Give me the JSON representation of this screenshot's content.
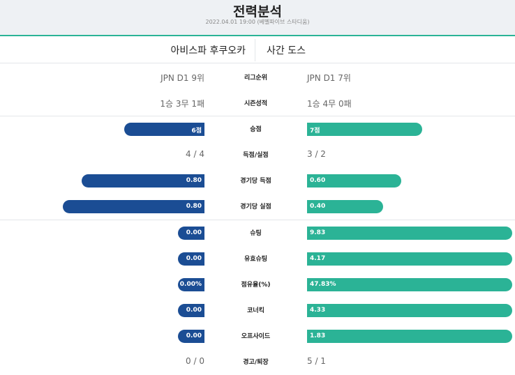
{
  "header": {
    "title": "전력분석",
    "subtitle": "2022.04.01 19:00 (베벨파이브 스타디움)"
  },
  "teams": {
    "home": "아비스파 후쿠오카",
    "away": "사간 도스"
  },
  "colors": {
    "home": "#1b4d94",
    "away": "#2bb396"
  },
  "stats": [
    {
      "label": "리그순위",
      "home": "JPN D1 9위",
      "away": "JPN D1 7위",
      "type": "text"
    },
    {
      "label": "시즌성적",
      "home": "1승 3무 1패",
      "away": "1승 4무 0패",
      "type": "text"
    },
    {
      "label": "승점",
      "home": "6점",
      "away": "7점",
      "type": "bar",
      "home_fill": 0.39,
      "away_fill": 0.56
    },
    {
      "label": "득점/실점",
      "home": "4 / 4",
      "away": "3 / 2",
      "type": "text"
    },
    {
      "label": "경기당 득점",
      "home": "0.80",
      "away": "0.60",
      "type": "bar",
      "home_fill": 0.6,
      "away_fill": 0.46
    },
    {
      "label": "경기당 실점",
      "home": "0.80",
      "away": "0.40",
      "type": "bar",
      "home_fill": 0.69,
      "away_fill": 0.37
    },
    {
      "label": "슈팅",
      "home": "0.00",
      "away": "9.83",
      "type": "bar",
      "home_fill": 0.13,
      "away_fill": 1.0
    },
    {
      "label": "유효슈팅",
      "home": "0.00",
      "away": "4.17",
      "type": "bar",
      "home_fill": 0.13,
      "away_fill": 1.0
    },
    {
      "label": "점유율(%)",
      "home": "0.00%",
      "away": "47.83%",
      "type": "bar",
      "home_fill": 0.13,
      "away_fill": 1.0
    },
    {
      "label": "코너킥",
      "home": "0.00",
      "away": "4.33",
      "type": "bar",
      "home_fill": 0.13,
      "away_fill": 1.0
    },
    {
      "label": "오프사이드",
      "home": "0.00",
      "away": "1.83",
      "type": "bar",
      "home_fill": 0.13,
      "away_fill": 1.0
    },
    {
      "label": "경고/퇴장",
      "home": "0 / 0",
      "away": "5 / 1",
      "type": "text"
    }
  ]
}
